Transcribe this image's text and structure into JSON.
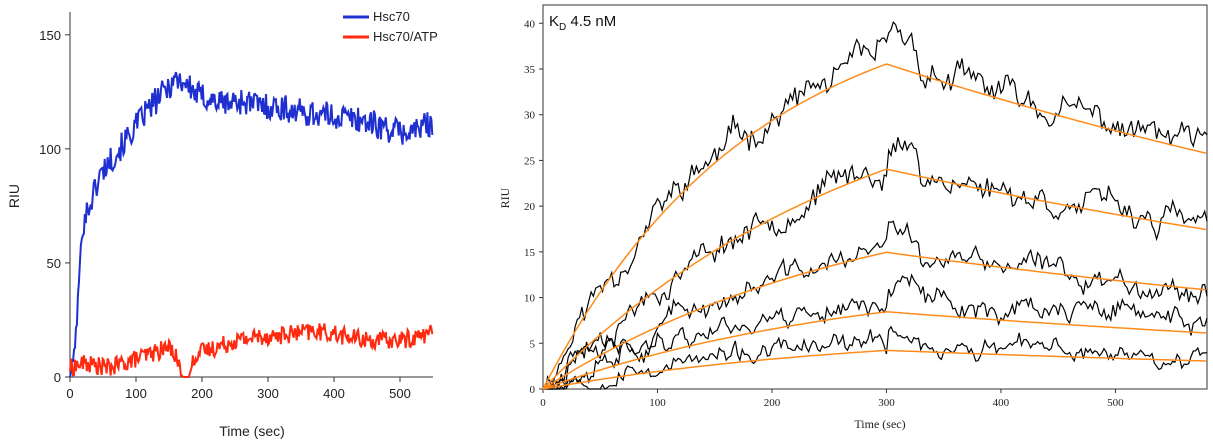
{
  "chart_data": [
    {
      "type": "line",
      "title": "",
      "xlabel": "Time (sec)",
      "ylabel": "RIU",
      "xlim": [
        0,
        550
      ],
      "ylim": [
        0,
        160
      ],
      "xticks": [
        0,
        100,
        200,
        300,
        400,
        500
      ],
      "yticks": [
        0,
        50,
        100,
        150
      ],
      "legend": "top-right",
      "series": [
        {
          "name": "Hsc70",
          "color": "#1f2fd0",
          "points": [
            [
              0,
              0
            ],
            [
              5,
              8
            ],
            [
              10,
              22
            ],
            [
              14,
              45
            ],
            [
              18,
              62
            ],
            [
              22,
              70
            ],
            [
              28,
              74
            ],
            [
              35,
              80
            ],
            [
              45,
              88
            ],
            [
              55,
              93
            ],
            [
              70,
              98
            ],
            [
              85,
              104
            ],
            [
              100,
              110
            ],
            [
              115,
              116
            ],
            [
              130,
              121
            ],
            [
              145,
              126
            ],
            [
              160,
              131
            ],
            [
              175,
              129
            ],
            [
              190,
              124
            ],
            [
              210,
              122
            ],
            [
              230,
              120
            ],
            [
              260,
              121
            ],
            [
              290,
              119
            ],
            [
              320,
              118
            ],
            [
              350,
              116
            ],
            [
              380,
              115
            ],
            [
              410,
              114
            ],
            [
              440,
              113
            ],
            [
              470,
              110
            ],
            [
              490,
              108
            ],
            [
              510,
              107
            ],
            [
              530,
              109
            ],
            [
              550,
              112
            ]
          ]
        },
        {
          "name": "Hsc70/ATP",
          "color": "#ff2a0f",
          "points": [
            [
              0,
              4
            ],
            [
              20,
              6
            ],
            [
              40,
              5
            ],
            [
              60,
              4
            ],
            [
              80,
              6
            ],
            [
              100,
              8
            ],
            [
              120,
              10
            ],
            [
              140,
              12
            ],
            [
              155,
              13
            ],
            [
              165,
              6
            ],
            [
              170,
              0
            ],
            [
              180,
              0
            ],
            [
              190,
              10
            ],
            [
              210,
              12
            ],
            [
              230,
              14
            ],
            [
              250,
              16
            ],
            [
              270,
              17
            ],
            [
              290,
              18
            ],
            [
              310,
              18
            ],
            [
              340,
              19
            ],
            [
              370,
              20
            ],
            [
              400,
              19
            ],
            [
              430,
              17
            ],
            [
              460,
              16
            ],
            [
              490,
              16
            ],
            [
              520,
              17
            ],
            [
              550,
              20
            ]
          ]
        }
      ]
    },
    {
      "type": "line",
      "title": "",
      "annotation": "K",
      "annotation_sub": "D",
      "annotation_rest": " 4.5 nM",
      "xlabel": "Time (sec)",
      "ylabel": "RIU",
      "xlim": [
        0,
        580
      ],
      "ylim": [
        0,
        42
      ],
      "xticks": [
        0,
        100,
        200,
        300,
        400,
        500
      ],
      "yticks": [
        0,
        5,
        10,
        15,
        20,
        25,
        30,
        35,
        40
      ],
      "grid": false,
      "fit_color": "#ff8c1a",
      "data_color": "#000000",
      "dissociation_start": 300,
      "fits": [
        {
          "plateau": 44,
          "kobs": 0.0055,
          "kd_off": 0.00115
        },
        {
          "plateau": 37,
          "kobs": 0.0035,
          "kd_off": 0.00115
        },
        {
          "plateau": 23,
          "kobs": 0.0035,
          "kd_off": 0.00115
        },
        {
          "plateau": 13,
          "kobs": 0.0035,
          "kd_off": 0.00115
        },
        {
          "plateau": 6.5,
          "kobs": 0.0035,
          "kd_off": 0.00115
        }
      ],
      "noise_traces": [
        {
          "amp": 1.6,
          "seed": 11,
          "offset": 0.5
        },
        {
          "amp": 1.4,
          "seed": 23,
          "offset": 0.4
        },
        {
          "amp": 1.2,
          "seed": 37,
          "offset": 0.2
        },
        {
          "amp": 1.2,
          "seed": 41,
          "offset": 1.5
        },
        {
          "amp": 1.0,
          "seed": 53,
          "offset": 0.6
        }
      ]
    }
  ]
}
